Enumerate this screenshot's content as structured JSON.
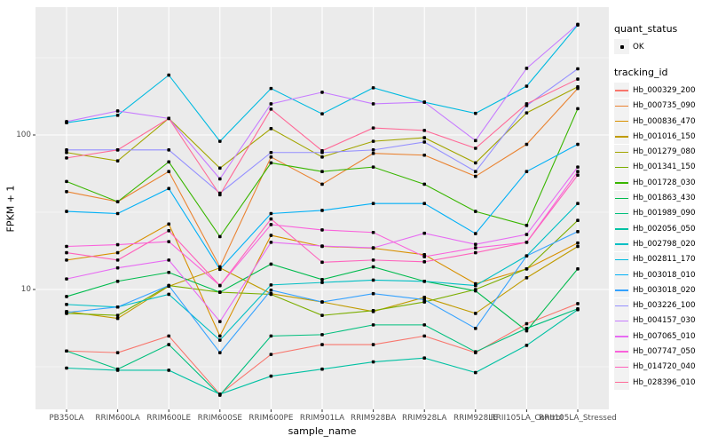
{
  "legend": {
    "quant_status_title": "quant_status",
    "quant_status_items": [
      {
        "label": "OK",
        "marker": "point"
      }
    ],
    "tracking_id_title": "tracking_id"
  },
  "chart_data": {
    "type": "line",
    "title": "",
    "xlabel": "sample_name",
    "ylabel": "FPKM + 1",
    "y_scale": "log10",
    "y_ticks": [
      10,
      100
    ],
    "ylim": [
      1.7,
      620
    ],
    "grid": true,
    "legend_position": "right",
    "panel_bg": "#ebebeb",
    "grid_color": "#ffffff",
    "point_color": "#000000",
    "tick_color": "#333333",
    "categories": [
      "PB350LA",
      "RRIM600LA",
      "RRIM600LE",
      "RRIM600SE",
      "RRIM600PE",
      "RRIM901LA",
      "RRIM928BA",
      "RRIM928LA",
      "RRIM928LE",
      "RRII105LA_Control",
      "RRII105LA_Stressed"
    ],
    "series": [
      {
        "name": "Hb_000329_200",
        "color": "#F8766D",
        "values": [
          4.0,
          3.9,
          5.0,
          2.1,
          3.8,
          4.4,
          4.4,
          5.0,
          3.9,
          6.0,
          8.1
        ]
      },
      {
        "name": "Hb_000735_090",
        "color": "#EA8331",
        "values": [
          43,
          37,
          58,
          14,
          72,
          48,
          76,
          74,
          54,
          87,
          200
        ]
      },
      {
        "name": "Hb_000836_470",
        "color": "#D89000",
        "values": [
          15.5,
          17.3,
          26.5,
          5.0,
          22.4,
          19.0,
          18.5,
          16.8,
          10.9,
          13.6,
          20
        ]
      },
      {
        "name": "Hb_001016_150",
        "color": "#C09B00",
        "values": [
          7.2,
          6.5,
          10.5,
          13.8,
          9.4,
          8.3,
          7.2,
          8.9,
          7.0,
          11.9,
          19
        ]
      },
      {
        "name": "Hb_001279_080",
        "color": "#A3A500",
        "values": [
          77,
          68,
          128,
          61,
          110,
          72,
          91,
          96,
          66,
          139,
          205
        ]
      },
      {
        "name": "Hb_001341_150",
        "color": "#7CAE00",
        "values": [
          7.0,
          6.8,
          10.6,
          9.6,
          9.3,
          6.8,
          7.3,
          8.3,
          10.0,
          13.6,
          28
        ]
      },
      {
        "name": "Hb_001728_030",
        "color": "#39B600",
        "values": [
          50,
          37,
          67,
          22,
          66,
          58,
          62,
          48,
          32,
          26,
          148
        ]
      },
      {
        "name": "Hb_001863_430",
        "color": "#00BB4E",
        "values": [
          9.0,
          11.3,
          12.9,
          9.6,
          14.6,
          11.6,
          14.0,
          11.3,
          9.8,
          5.4,
          13.6
        ]
      },
      {
        "name": "Hb_001989_090",
        "color": "#00BF7D",
        "values": [
          4.0,
          3.05,
          4.4,
          2.07,
          5.0,
          5.1,
          5.9,
          5.9,
          3.95,
          5.6,
          7.5
        ]
      },
      {
        "name": "Hb_002056_050",
        "color": "#00C1A3",
        "values": [
          3.1,
          3.0,
          3.0,
          2.1,
          2.75,
          3.05,
          3.4,
          3.6,
          2.9,
          4.35,
          7.4
        ]
      },
      {
        "name": "Hb_002798_020",
        "color": "#00BFC4",
        "values": [
          8.0,
          7.7,
          9.3,
          4.7,
          10.7,
          11.1,
          11.5,
          11.3,
          10.6,
          16.5,
          36
        ]
      },
      {
        "name": "Hb_002811_170",
        "color": "#00BAE0",
        "values": [
          120,
          134,
          244,
          91,
          200,
          137,
          202,
          163,
          138,
          207,
          515
        ]
      },
      {
        "name": "Hb_003018_010",
        "color": "#00B0F6",
        "values": [
          32,
          31,
          45,
          13.5,
          31,
          32.5,
          36,
          36,
          23,
          58,
          87
        ]
      },
      {
        "name": "Hb_003018_020",
        "color": "#35A2FF",
        "values": [
          7.1,
          7.7,
          10.6,
          3.9,
          9.9,
          8.3,
          9.4,
          8.6,
          5.6,
          16.5,
          23.7
        ]
      },
      {
        "name": "Hb_003226_100",
        "color": "#9590FF",
        "values": [
          80,
          80,
          80,
          42,
          77,
          77,
          80,
          90,
          58,
          155,
          268
        ]
      },
      {
        "name": "Hb_004157_030",
        "color": "#C77CFF",
        "values": [
          122,
          143,
          128,
          52,
          159,
          189,
          159,
          163,
          92,
          270,
          520
        ]
      },
      {
        "name": "Hb_007065_010",
        "color": "#E76BF3",
        "values": [
          11.7,
          13.8,
          15.5,
          6.2,
          20.2,
          19.1,
          18.6,
          23.1,
          19.6,
          22.7,
          62
        ]
      },
      {
        "name": "Hb_007747_050",
        "color": "#FA62DB",
        "values": [
          19.0,
          19.5,
          20.4,
          10.6,
          26.3,
          24.3,
          23.4,
          16.3,
          18.6,
          20.2,
          58
        ]
      },
      {
        "name": "Hb_014720_040",
        "color": "#FF62BC",
        "values": [
          17.3,
          15.5,
          24.0,
          10.6,
          28.6,
          15.0,
          15.5,
          15.1,
          17.3,
          20.2,
          55
        ]
      },
      {
        "name": "Hb_028396_010",
        "color": "#FF6A98",
        "values": [
          71,
          80,
          128,
          41,
          147,
          79,
          111,
          107,
          82,
          159,
          230
        ]
      }
    ]
  }
}
